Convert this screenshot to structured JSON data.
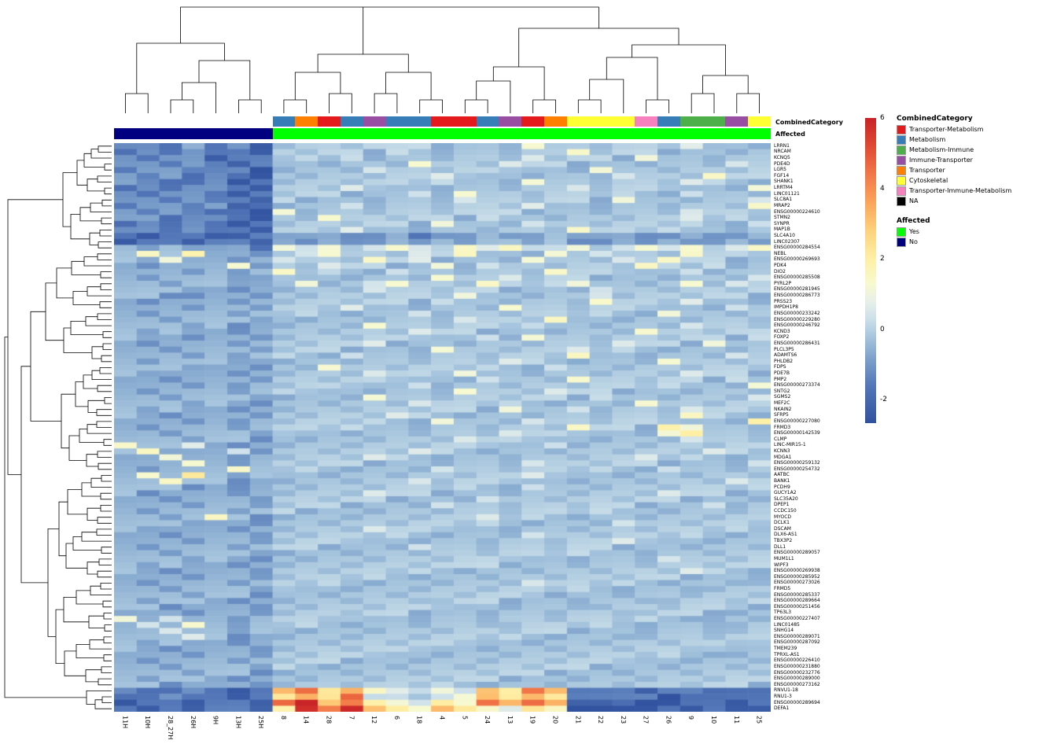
{
  "chart_data": {
    "type": "heatmap",
    "columns": [
      "11H",
      "10H",
      "28_27H",
      "26H",
      "9H",
      "13H",
      "25H",
      "8",
      "14",
      "28",
      "7",
      "12",
      "6",
      "18",
      "4",
      "5",
      "24",
      "13",
      "19",
      "20",
      "21",
      "22",
      "23",
      "27",
      "26",
      "9",
      "10",
      "11",
      "25"
    ],
    "column_affected": [
      "No",
      "No",
      "No",
      "No",
      "No",
      "No",
      "No",
      "Yes",
      "Yes",
      "Yes",
      "Yes",
      "Yes",
      "Yes",
      "Yes",
      "Yes",
      "Yes",
      "Yes",
      "Yes",
      "Yes",
      "Yes",
      "Yes",
      "Yes",
      "Yes",
      "Yes",
      "Yes",
      "Yes",
      "Yes",
      "Yes",
      "Yes"
    ],
    "column_category": [
      null,
      null,
      null,
      null,
      null,
      null,
      null,
      "Metabolism",
      "Transporter",
      "Transporter-Metabolism",
      "Metabolism",
      "Immune-Transporter",
      "Metabolism",
      "Metabolism",
      "Transporter-Metabolism",
      "Transporter-Metabolism",
      "Metabolism",
      "Immune-Transporter",
      "Transporter-Metabolism",
      "Transporter",
      "Cytoskeletal",
      "Cytoskeletal",
      "Cytoskeletal",
      "Transporter-Immune-Metabolism",
      "Metabolism",
      "Metabolism-Immune",
      "Metabolism-Immune",
      "Immune-Transporter",
      "Cytoskeletal"
    ],
    "rows": [
      "LRRN1",
      "NRCAM",
      "KCNQ5",
      "PDE4D",
      "LGR5",
      "FGF14",
      "SHANK1",
      "LRRTM4",
      "LINC01121",
      "SLC8A1",
      "MRAP2",
      "ENSG00000224610",
      "STMN2",
      "SYNPR",
      "MAP1B",
      "SLC4A10",
      "LINC02307",
      "ENSG00000284554",
      "NEBL",
      "ENSG00000269693",
      "PDK4",
      "DIO2",
      "ENSG00000285508",
      "PYRL2P",
      "ENSG00000281945",
      "ENSG00000286773",
      "PRSS23",
      "IMPDH1P8",
      "ENSG00000233242",
      "ENSG00000229280",
      "ENSG00000246792",
      "KCND3",
      "FOXP2",
      "ENSG00000286431",
      "PLCL3P5",
      "ADAMTS6",
      "PHLDB2",
      "FDPS",
      "PDE7B",
      "PMP2",
      "ENSG00000273374",
      "SNTG2",
      "SGMS2",
      "MEF2C",
      "NKAIN2",
      "SFRP5",
      "ENSG00000227080",
      "FRMD3",
      "ENSG00000142539",
      "CLMP",
      "LINC-MIR15-1",
      "KCNN3",
      "MDGA1",
      "ENSG00000259132",
      "ENSG00000254732",
      "AATBC",
      "BANK1",
      "PCDH9",
      "GUCY1A2",
      "SLC35A20",
      "DPEP1",
      "CCDC150",
      "MYOCD",
      "DCLK1",
      "DSCAM",
      "DLX6-AS1",
      "TBX3P2",
      "DLL1",
      "ENSG00000289057",
      "MUM1L1",
      "WIPF3",
      "ENSG00000269938",
      "ENSG00000285952",
      "ENSG00000273026",
      "FRMD5",
      "ENSG00000285337",
      "ENSG00000289664",
      "ENSG00000251456",
      "TP63L3",
      "ENSG00000227407",
      "LINC01485",
      "SNHG14",
      "ENSG00000289071",
      "ENSG00000287092",
      "TMEM239",
      "TPRXL-AS1",
      "ENSG00000226410",
      "ENSG00000231880",
      "ENSG00000232776",
      "ENSG00000289000",
      "ENSG00000273162",
      "RNVU1-18",
      "RNU1-3",
      "ENSG00000289694",
      "DEFA1"
    ],
    "matrix_encoded": [
      "ccbdbcadeedeefdeedgeedeedfeed",
      "bcbcbbaedeedfedeedeegdeedeede",
      "cbccabbdeefdeedeedfdeedgeedee",
      "ccbcbabeedeedgeedfeedeedeedfe",
      "bccbbcadeedfeedeedeedgeedeede",
      "cbcbcbaedeedeefdeedeedfeedgee",
      "ccbbcabdeedeedfeedgeedeedfeed",
      "bcbccbaeedfdeedeedeefdeedeedg",
      "cbccbabdeedeefdgeedeedeedfeed",
      "ccbcbbaedeedeedfeedeedgeedeef",
      "bccbcabdeefdeedeedfeedeedeedg",
      "cbcbbbagdeedeedeefdeedeedfeed",
      "ccbccbaedgeedeedfeedeedeefdee",
      "bcbcbabdeedeedgeedfeedeedeedf",
      "ccbcbbaeedfeedeedeedgeedfeede",
      "babbaabccdccdbccdccdccdccdccd",
      "abbabbadcdccdcdcddcdccdcdccdc",
      "dcdccdbgfgefgfegfgffgefgfgefg",
      "dgdhddcefgeedfegeedgefeedgeed",
      "ddgddcdfeedgefdeedgeedfegeede",
      "dcdddgcedfeedegdfeedeedgeefde",
      "dddcdcdgdeedfeedeedgeedeefdee",
      "dcdddccdeedeedgeefdeedeedeedf",
      "ddcddcdegdefgeedgedfgeedegdfe",
      "dddcdcddeedfeedeedeedfeedeede",
      "ddccddcedeedeedgeedeefdeedeed",
      "dcdddcddeedeedfeedeedgeedfeed",
      "dddcddceedfeedeedgeedeedeedfe",
      "dcdddcddeedeefdeedeedeedgeede",
      "ddcdddcedeedeedfeedgeedeedeed",
      "dddcdcddeedgeedeedfeedeedfeed",
      "dcdddcdeedeedfeedeedeedgeedee",
      "dddcddcdeedeedeefdgeedeedeedf",
      "dcdddcdedeefdeedeedeedfeedgee",
      "ddcdddcdeedeedgeedeefdeedeede",
      "dddcdcdeedfeedeedeedgeedeedfe",
      "dcdddcddeedeedeedfeedeedgeede",
      "dddcddcedgeedeedeedfeedeedeed",
      "dcdddcddeedfeedgeedeedeedfeed",
      "ddcdddceedeedeedfeedgeedeedfe",
      "dddcdcddeedeefdeedeedeedfeedg",
      "dcdddcdedeedeedgeedfeedeedeed",
      "ddcdddcdeedgeedeedeedfeedeedf",
      "dddcddceedeedfeedeedeedgeedee",
      "dcdddcddeedeedeedgeefdeedfeed",
      "ddcdddcedeedfeedeedeedeedgeed",
      "dddcdcddeedeedgeedfeedeedeedh",
      "dcdddcdeedfeedeedeedgeedhgeed",
      "ddcdddcdeedeedeedfeedeedgheed",
      "dddcddcedeedeedfeedeedeedfeed",
      "gddfdcddeedeedeedeefdeedeedee",
      "dgdddfceedeedfeedeedeedeedfee",
      "ddgddcddeedfeedeedeedeefdeede",
      "dddgdcdedeedeedeedfeedeedeedf",
      "dcdddgddeedeedfeedeedeedfeede",
      "dgdhdcdeedeedeedeefdeedeedeed",
      "ddgddcddeedeefdeedeedeedeedfe",
      "dddcdcdedeedeedeedfeedeedeede",
      "dcdddcddeedfeedeedeedeedfeede",
      "ddcdddceedeedeedfeedeedeedeed",
      "dddcddcdeedeedfeedeedeedeefde",
      "dcdddcdedeedeedeedeedfeedeede",
      "ddcdgdcdeedeedeefdeedeedeedee",
      "dddcddceedeedeedeedeedfeedeed",
      "dcdddcddeedfeedeedeedeedeedee",
      "ddcdddcedeedeedeedfeedeedeede",
      "dddcddcdeedeedeedeedeefdeedee",
      "dcdddcdeedeedfeedeedeedeedeed",
      "ddcdddcdeedeedeedeedfeedeedee",
      "dddcddcedeedeedeedeedeedfeede",
      "dcdddcddeedeedeefdeedeedeedee",
      "ddcdddceedeedeedeedeedeedfeed",
      "dddcddcdeedeedeedeedeedeedeed",
      "dcdddcdedeedeedeedfeedeedeedd",
      "ddcdddcdeedeedeedeedeedeeddee",
      "dddcddceedeedeedeeddeedeedeed",
      "dcdddcddeedeeddeedeedeeddeede",
      "ddcdddcedeedeedeedeeddeedeedd",
      "dddcddcdeedeedeedeedeeddeedde",
      "gdfddcdeeddeedeedeedeedeedded",
      "dfdgdcddeedeedeeddeedeedeedde",
      "ddfddcdedeedeedeedeedeedeedde",
      "dddfdcddeedeedeedeedeeddeedee",
      "dcdddcdeedeedeedeedeedeedeedd",
      "ddcdddcdeedeedeedeedeedeeddee",
      "dddcddcedeedeedeedeedeedeedde",
      "dcdddcddeedeedeedeedeedeedeed",
      "ddcdddceedeedeedeedeedeedeede",
      "dddcddcdeedeedeedeedeedeedeed",
      "dcdddcdedeedeedeedeedeedeedee",
      "ddcdddcdeedeedeedeedeedeedeed",
      "cbbcbabijhigffgfihjibbbabbbbb",
      "bbcbbabhihjffefgihihbbbbabbbb",
      "abbabbajkijhgfhgjijiaabaabbab",
      "bababbahkjkihgihgfhgaaaababaa"
    ],
    "value_key": {
      "a": -2.4,
      "b": -1.6,
      "c": -1.0,
      "d": -0.45,
      "e": -0.1,
      "f": 0.45,
      "g": 1.3,
      "h": 2.1,
      "i": 3.2,
      "j": 4.5,
      "k": 6
    },
    "color_scale": {
      "domain": [
        -2.67,
        6
      ],
      "ticks": [
        "6",
        "4",
        "2",
        "0",
        "-2"
      ],
      "tick_values": [
        6,
        4,
        2,
        0,
        -2
      ],
      "stops": [
        {
          "v": -2.67,
          "c": "#30519E"
        },
        {
          "v": -1.6,
          "c": "#5377B8"
        },
        {
          "v": -0.8,
          "c": "#7FA3CC"
        },
        {
          "v": -0.2,
          "c": "#A8C6DE"
        },
        {
          "v": 0.3,
          "c": "#CDE0EA"
        },
        {
          "v": 0.8,
          "c": "#E8F0E9"
        },
        {
          "v": 1.3,
          "c": "#F7F9D0"
        },
        {
          "v": 2.0,
          "c": "#FEF0A6"
        },
        {
          "v": 2.8,
          "c": "#FDD27E"
        },
        {
          "v": 3.6,
          "c": "#FCA55B"
        },
        {
          "v": 4.5,
          "c": "#F07346"
        },
        {
          "v": 5.2,
          "c": "#E04B33"
        },
        {
          "v": 6.0,
          "c": "#C92428"
        }
      ]
    },
    "annotation_labels": {
      "category": "CombinedCategory",
      "affected": "Affected"
    },
    "legend": {
      "combined_category": {
        "title": "CombinedCategory",
        "items": [
          {
            "label": "Transporter-Metabolism",
            "color": "#E41A1C"
          },
          {
            "label": "Metabolism",
            "color": "#377EB8"
          },
          {
            "label": "Metabolism-Immune",
            "color": "#4DAF4A"
          },
          {
            "label": "Immune-Transporter",
            "color": "#984EA3"
          },
          {
            "label": "Transporter",
            "color": "#FF7F00"
          },
          {
            "label": "Cytoskeletal",
            "color": "#FFFF33"
          },
          {
            "label": "Transporter-Immune-Metabolism",
            "color": "#F781BF"
          },
          {
            "label": "NA",
            "color": "#000000"
          }
        ]
      },
      "affected": {
        "title": "Affected",
        "items": [
          {
            "label": "Yes",
            "color": "#00FF00"
          },
          {
            "label": "No",
            "color": "#000080"
          }
        ]
      }
    }
  }
}
